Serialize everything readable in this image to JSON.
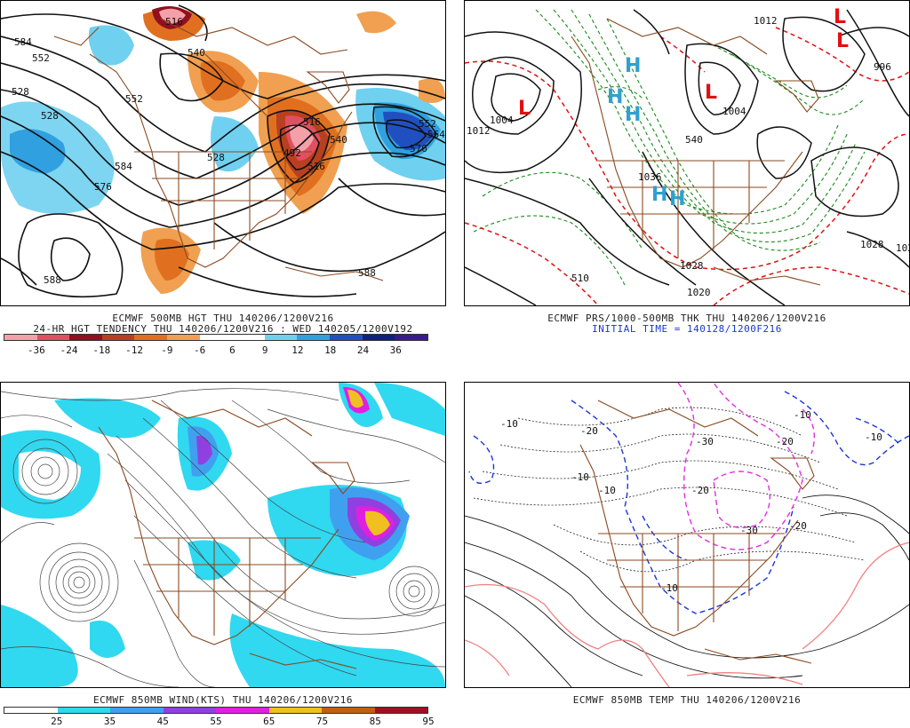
{
  "panels": [
    {
      "id": "p1",
      "caption1": "ECMWF 500MB HGT THU 140206/1200V216",
      "caption2": "24-HR HGT TENDENCY THU 140206/1200V216 : WED 140205/1200V192",
      "contour_labels": [
        "584",
        "552",
        "528",
        "528",
        "552",
        "516",
        "540",
        "528",
        "584",
        "576",
        "516",
        "492",
        "516",
        "540",
        "552",
        "564",
        "576",
        "588",
        "588"
      ],
      "colorbar": {
        "colors": [
          "#f4a0a8",
          "#e05060",
          "#901020",
          "#b84020",
          "#e07020",
          "#f0a050",
          "#ffffff",
          "#ffffff",
          "#70d0f0",
          "#30a0e0",
          "#2050c0",
          "#102080",
          "#3a1a90"
        ],
        "ticks": [
          "-36",
          "-24",
          "-18",
          "-12",
          "-9",
          "-6",
          "6",
          "9",
          "12",
          "18",
          "24",
          "36"
        ]
      }
    },
    {
      "id": "p2",
      "caption1": "ECMWF PRS/1000-500MB THK THU 140206/1200V216",
      "caption2": "INITIAL TIME = 140128/1200F216",
      "pressure_labels": [
        "1012",
        "1004",
        "1004",
        "1028",
        "1036",
        "1028",
        "1020",
        "1028",
        "996",
        "1012"
      ],
      "thickness_labels": [
        "540",
        "510"
      ],
      "centers": [
        {
          "type": "L",
          "color": "#e01010"
        },
        {
          "type": "L",
          "color": "#e01010"
        },
        {
          "type": "L",
          "color": "#e01010"
        },
        {
          "type": "L",
          "color": "#e01010"
        },
        {
          "type": "H",
          "color": "#30a0d0"
        },
        {
          "type": "H",
          "color": "#30a0d0"
        },
        {
          "type": "H",
          "color": "#30a0d0"
        },
        {
          "type": "H",
          "color": "#30a0d0"
        },
        {
          "type": "H",
          "color": "#30a0d0"
        }
      ]
    },
    {
      "id": "p3",
      "caption1": "ECMWF 850MB WIND(KTS) THU 140206/1200V216",
      "colorbar": {
        "colors": [
          "#ffffff",
          "#30d8f0",
          "#40a0f0",
          "#9040e0",
          "#e020e0",
          "#f0c020",
          "#c06010",
          "#a01020"
        ],
        "ticks": [
          "25",
          "35",
          "45",
          "55",
          "65",
          "75",
          "85",
          "95"
        ]
      }
    },
    {
      "id": "p4",
      "caption1": "ECMWF 850MB TEMP THU 140206/1200V216",
      "temp_labels": [
        "-10",
        "-20",
        "-30",
        "-20",
        "-10",
        "-20",
        "-30",
        "-20",
        "-10",
        "-10",
        "-10",
        "-10"
      ]
    }
  ],
  "colors": {
    "coast": "#8a4a20",
    "contour": "#111111",
    "thickness_cold": "#1a8a1a",
    "thickness_warm": "#e01010",
    "temp_below": "#1a36d8",
    "temp_cold": "#e030e0",
    "temp_warm": "#f08080"
  }
}
